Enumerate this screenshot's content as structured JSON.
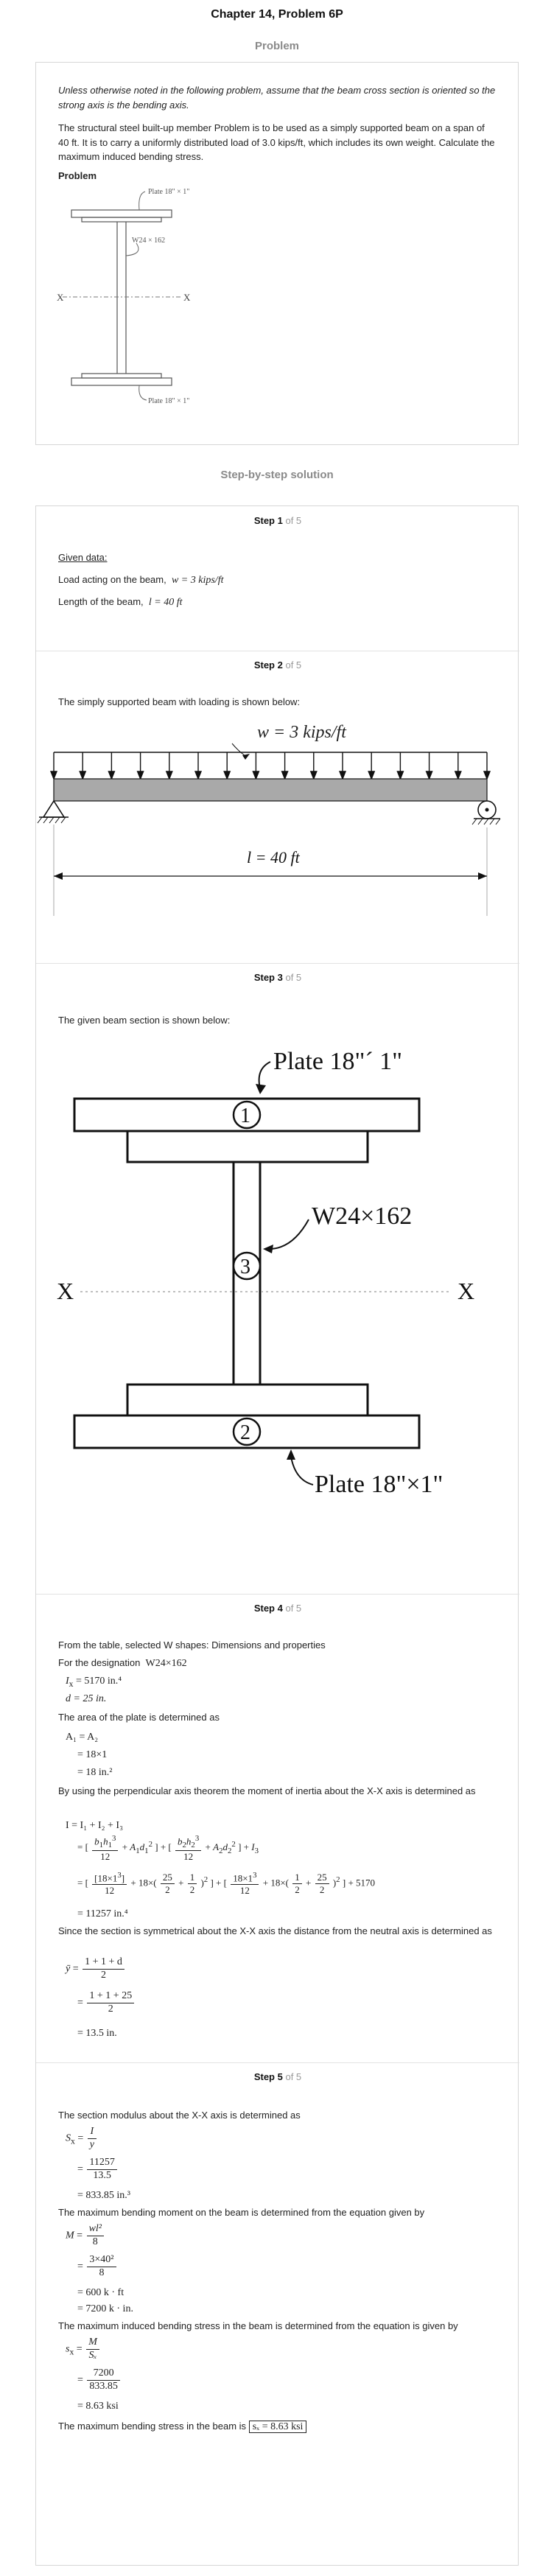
{
  "header": {
    "title": "Chapter 14, Problem 6P",
    "problem_label": "Problem",
    "solution_label": "Step-by-step solution"
  },
  "problem": {
    "italic_note": "Unless otherwise noted in the following problem, assume that the beam cross section is oriented so the strong axis is the bending axis.",
    "statement": "The structural steel built-up member Problem is to be used as a simply supported beam on a span of 40 ft. It is to carry a uniformly distributed load of 3.0 kips/ft, which includes its own weight. Calculate the maximum induced bending stress.",
    "heading": "Problem",
    "figure": {
      "top_plate": "Plate 18\" × 1\"",
      "section": "W24 × 162",
      "bottom_plate": "Plate 18\" × 1\"",
      "axis_left": "X",
      "axis_right": "X"
    }
  },
  "steps": [
    {
      "label": "Step 1",
      "of": "of 5",
      "given_title": "Given data:",
      "load_label": "Load acting on the beam,",
      "load_value": "w = 3 kips/ft",
      "length_label": "Length of the beam,",
      "length_value": "l = 40 ft"
    },
    {
      "label": "Step 2",
      "of": "of 5",
      "intro": "The simply supported beam with loading is shown below:",
      "load": "w = 3 kips/ft",
      "span": "l = 40 ft"
    },
    {
      "label": "Step 3",
      "of": "of 5",
      "intro": "The given beam section is shown below:",
      "top_plate": "Plate 18\"´ 1\"",
      "section": "W24×162",
      "bottom_plate": "Plate 18\"×1\"",
      "axis": "X",
      "n1": "1",
      "n2": "2",
      "n3": "3"
    },
    {
      "label": "Step 4",
      "of": "of 5",
      "l1": "From the table, selected W shapes: Dimensions and properties",
      "l2": "For the designation",
      "l2b": "W24×162",
      "ix": "= 5170 in.⁴",
      "d": "d = 25 in.",
      "l5": "The area of the plate is determined as",
      "a1": "A₁ = A₂",
      "a2": "= 18×1",
      "a3": "= 18 in.²",
      "l9": "By using the perpendicular axis theorem the moment of inertia about the X-X axis is determined as",
      "i1": "I = I₁ + I₂ + I₃",
      "i4": "+ 5170",
      "i5": "= 11257 in.⁴",
      "l14": "Since the section is symmetrical about the X-X axis the distance from the neutral axis is determined as",
      "y1n": "1 + 1 + d",
      "y1d": "2",
      "y2n": "1 + 1 + 25",
      "y2d": "2",
      "y3": "= 13.5 in."
    },
    {
      "label": "Step 5",
      "of": "of 5",
      "l1": "The section modulus about the X-X axis is determined as",
      "s1n": "I",
      "s1d": "y",
      "s2n": "11257",
      "s2d": "13.5",
      "s3": "= 833.85 in.³",
      "l2": "The maximum bending moment on the beam is determined from the equation given by",
      "m1n": "wl²",
      "m1d": "8",
      "m2n": "3×40²",
      "m2d": "8",
      "m3": "= 600 k · ft",
      "m4": "= 7200 k · in.",
      "l3": "The maximum induced bending stress in the beam is determined from the equation is given by",
      "f1n": "M",
      "f1d": "Sₓ",
      "f2n": "7200",
      "f2d": "833.85",
      "f3": "= 8.63 ksi",
      "final": "The maximum bending stress in the beam is",
      "answer": "sₓ = 8.63 ksi"
    }
  ]
}
